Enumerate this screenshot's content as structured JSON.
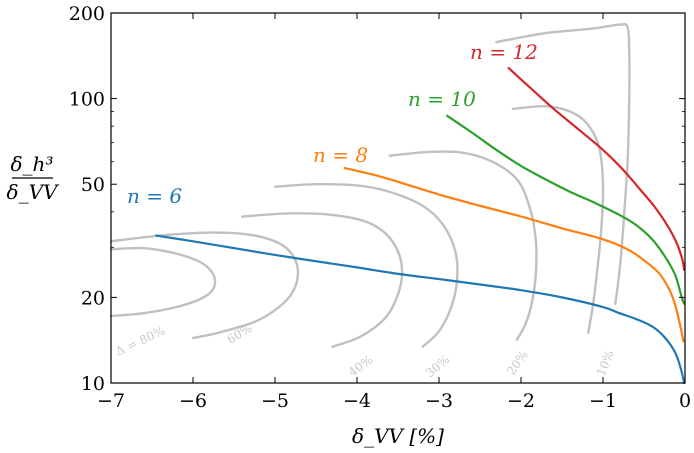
{
  "chart_data": {
    "type": "line",
    "xlabel": "δ_VV [%]",
    "ylabel_numerator": "δ_h³",
    "ylabel_denominator": "δ_VV",
    "xlim": [
      -7,
      0
    ],
    "ylim": [
      10,
      200
    ],
    "yscale": "log",
    "grid": false,
    "x_ticks": [
      -7,
      -6,
      -5,
      -4,
      -3,
      -2,
      -1,
      0
    ],
    "x_tick_labels": [
      "−7",
      "−6",
      "−5",
      "−4",
      "−3",
      "−2",
      "−1",
      "0"
    ],
    "y_ticks": [
      10,
      20,
      50,
      100,
      200
    ],
    "y_tick_labels": [
      "10",
      "20",
      "50",
      "100",
      "200"
    ],
    "colors": {
      "n6": "#1f77b4",
      "n8": "#ff7f0e",
      "n10": "#2ca02c",
      "n12": "#d62728",
      "contour": "#c0c0c0"
    },
    "series": [
      {
        "name": "n = 6",
        "color": "#1f77b4",
        "points": [
          [
            -6.45,
            33
          ],
          [
            -6.0,
            31.5
          ],
          [
            -5.5,
            29.8
          ],
          [
            -5.0,
            28.2
          ],
          [
            -4.5,
            26.8
          ],
          [
            -4.0,
            25.5
          ],
          [
            -3.5,
            24.2
          ],
          [
            -3.0,
            23.2
          ],
          [
            -2.5,
            22.2
          ],
          [
            -2.0,
            21.2
          ],
          [
            -1.5,
            20.0
          ],
          [
            -1.0,
            18.5
          ],
          [
            -0.8,
            17.6
          ],
          [
            -0.6,
            16.8
          ],
          [
            -0.4,
            15.8
          ],
          [
            -0.25,
            14.5
          ],
          [
            -0.12,
            12.8
          ],
          [
            -0.05,
            11.2
          ],
          [
            -0.01,
            10.0
          ]
        ]
      },
      {
        "name": "n = 8",
        "color": "#ff7f0e",
        "points": [
          [
            -4.15,
            57
          ],
          [
            -3.8,
            54
          ],
          [
            -3.5,
            51
          ],
          [
            -3.0,
            46
          ],
          [
            -2.5,
            42
          ],
          [
            -2.0,
            38.5
          ],
          [
            -1.5,
            35
          ],
          [
            -1.0,
            32
          ],
          [
            -0.7,
            29.5
          ],
          [
            -0.5,
            27
          ],
          [
            -0.3,
            24
          ],
          [
            -0.15,
            20
          ],
          [
            -0.06,
            16
          ],
          [
            -0.02,
            14
          ]
        ]
      },
      {
        "name": "n = 10",
        "color": "#2ca02c",
        "points": [
          [
            -2.9,
            87
          ],
          [
            -2.6,
            76
          ],
          [
            -2.3,
            66
          ],
          [
            -2.0,
            58
          ],
          [
            -1.7,
            52
          ],
          [
            -1.4,
            47
          ],
          [
            -1.1,
            43
          ],
          [
            -0.8,
            39
          ],
          [
            -0.6,
            36
          ],
          [
            -0.4,
            32
          ],
          [
            -0.25,
            28
          ],
          [
            -0.12,
            24
          ],
          [
            -0.04,
            20
          ],
          [
            -0.01,
            19
          ]
        ]
      },
      {
        "name": "n = 12",
        "color": "#d62728",
        "points": [
          [
            -2.15,
            128
          ],
          [
            -1.9,
            110
          ],
          [
            -1.6,
            92
          ],
          [
            -1.3,
            78
          ],
          [
            -1.0,
            66
          ],
          [
            -0.75,
            56
          ],
          [
            -0.55,
            48
          ],
          [
            -0.38,
            42
          ],
          [
            -0.22,
            36
          ],
          [
            -0.1,
            31
          ],
          [
            -0.03,
            27
          ],
          [
            -0.01,
            25
          ]
        ]
      }
    ],
    "series_labels": [
      "n = 6",
      "n = 8",
      "n = 10",
      "n = 12"
    ],
    "contour_labels": [
      "Δ = 80%",
      "60%",
      "40%",
      "30%",
      "20%",
      "10%"
    ],
    "contours": [
      {
        "label": "Δ = 80%",
        "points": [
          [
            -7,
            29.5
          ],
          [
            -6.6,
            29.8
          ],
          [
            -6.2,
            28.5
          ],
          [
            -5.9,
            26.5
          ],
          [
            -5.75,
            24
          ],
          [
            -5.75,
            21.5
          ],
          [
            -5.9,
            19.8
          ],
          [
            -6.2,
            18.5
          ],
          [
            -6.6,
            17.6
          ],
          [
            -7,
            17.2
          ]
        ]
      },
      {
        "label": "60%",
        "points": [
          [
            -7,
            31.5
          ],
          [
            -6.4,
            33
          ],
          [
            -5.8,
            33.8
          ],
          [
            -5.3,
            33.2
          ],
          [
            -4.95,
            31
          ],
          [
            -4.78,
            28
          ],
          [
            -4.72,
            24.5
          ],
          [
            -4.78,
            21
          ],
          [
            -4.95,
            18.5
          ],
          [
            -5.25,
            16.4
          ],
          [
            -5.7,
            15.0
          ],
          [
            -6.0,
            14.4
          ]
        ]
      },
      {
        "label": "40%",
        "points": [
          [
            -5.4,
            38.5
          ],
          [
            -4.8,
            39.5
          ],
          [
            -4.3,
            39.0
          ],
          [
            -3.9,
            37
          ],
          [
            -3.65,
            33.5
          ],
          [
            -3.5,
            29
          ],
          [
            -3.45,
            24.5
          ],
          [
            -3.5,
            20.5
          ],
          [
            -3.65,
            17
          ],
          [
            -3.95,
            14.6
          ],
          [
            -4.3,
            13.4
          ]
        ]
      },
      {
        "label": "30%",
        "points": [
          [
            -5.0,
            49
          ],
          [
            -4.5,
            50
          ],
          [
            -4.0,
            49.5
          ],
          [
            -3.6,
            47
          ],
          [
            -3.2,
            42
          ],
          [
            -2.95,
            36
          ],
          [
            -2.8,
            29
          ],
          [
            -2.78,
            23
          ],
          [
            -2.85,
            18.5
          ],
          [
            -3.0,
            15.2
          ],
          [
            -3.2,
            13.4
          ]
        ]
      },
      {
        "label": "20%",
        "points": [
          [
            -3.6,
            63
          ],
          [
            -3.1,
            65
          ],
          [
            -2.7,
            64.5
          ],
          [
            -2.35,
            60
          ],
          [
            -2.05,
            52
          ],
          [
            -1.9,
            42
          ],
          [
            -1.82,
            32
          ],
          [
            -1.82,
            24
          ],
          [
            -1.87,
            19
          ],
          [
            -1.95,
            16
          ],
          [
            -2.05,
            14.2
          ]
        ]
      },
      {
        "label": "10%",
        "points": [
          [
            -2.1,
            92
          ],
          [
            -1.7,
            94
          ],
          [
            -1.4,
            90
          ],
          [
            -1.2,
            82
          ],
          [
            -1.05,
            68
          ],
          [
            -1.0,
            50
          ],
          [
            -1.02,
            35
          ],
          [
            -1.07,
            25
          ],
          [
            -1.12,
            19
          ],
          [
            -1.18,
            15
          ]
        ]
      },
      {
        "label": "",
        "points": [
          [
            -2.3,
            158
          ],
          [
            -1.7,
            170
          ],
          [
            -1.15,
            176
          ],
          [
            -0.8,
            182
          ],
          [
            -0.7,
            178
          ],
          [
            -0.68,
            145
          ],
          [
            -0.68,
            100
          ],
          [
            -0.7,
            60
          ],
          [
            -0.74,
            40
          ],
          [
            -0.78,
            28
          ],
          [
            -0.82,
            22
          ],
          [
            -0.85,
            19
          ]
        ]
      }
    ]
  }
}
